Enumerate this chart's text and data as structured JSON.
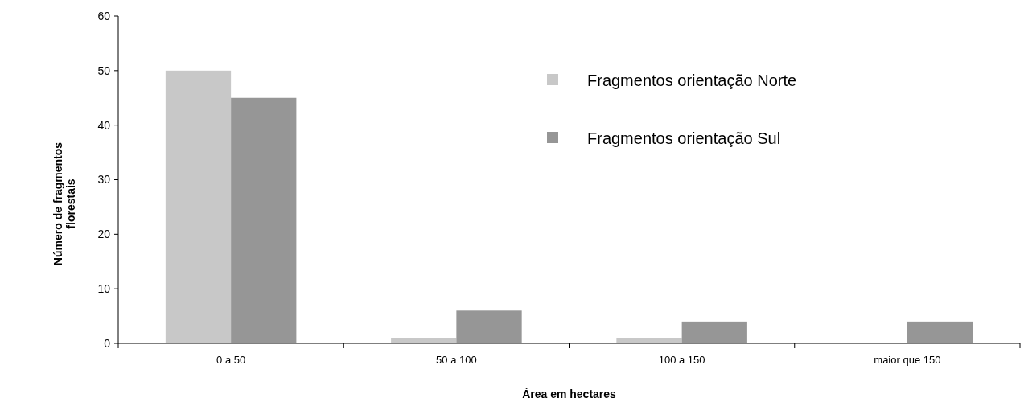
{
  "chart_data": {
    "type": "bar",
    "xlabel": "Àrea em hectares",
    "ylabel": "Número de fragmentos florestais",
    "categories": [
      "0 a 50",
      "50 a 100",
      "100 a 150",
      "maior que 150"
    ],
    "series": [
      {
        "name": "Fragmentos orientação Norte",
        "color": "#c8c8c8",
        "values": [
          50,
          1,
          1,
          0
        ]
      },
      {
        "name": "Fragmentos orientação Sul",
        "color": "#969696",
        "values": [
          45,
          6,
          4,
          4
        ]
      }
    ],
    "ylim": [
      0,
      60
    ],
    "yticks": [
      0,
      10,
      20,
      30,
      40,
      50,
      60
    ],
    "grid": false,
    "legend": "top right"
  }
}
